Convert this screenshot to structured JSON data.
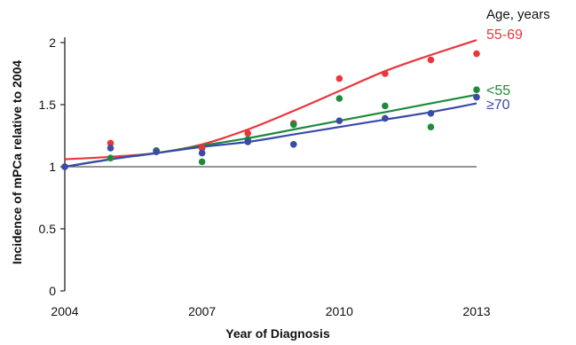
{
  "chart_data": {
    "type": "scatter",
    "title": "",
    "xlabel": "Year of Diagnosis",
    "ylabel": "Incidence of mPCa relative to 2004",
    "xlim": [
      2004,
      2013
    ],
    "ylim": [
      0,
      2
    ],
    "x_ticks": [
      2004,
      2007,
      2010,
      2013
    ],
    "x_tick_labels": [
      "2004",
      "2007",
      "2010",
      "2013"
    ],
    "y_ticks": [
      0,
      0.5,
      1,
      1.5,
      2
    ],
    "y_tick_labels": [
      "0",
      "0.5",
      "1",
      "1.5",
      "2"
    ],
    "reference_line": 1,
    "grid": false,
    "legend_title": "Age, years",
    "legend_placement": "right",
    "x": [
      2004,
      2005,
      2006,
      2007,
      2008,
      2009,
      2010,
      2011,
      2012,
      2013
    ],
    "series": [
      {
        "name": "55-69",
        "color": "#e8363c",
        "values": [
          1.0,
          1.19,
          1.13,
          1.15,
          1.27,
          1.35,
          1.71,
          1.75,
          1.86,
          1.91
        ],
        "fit": [
          1.06,
          1.08,
          1.11,
          1.18,
          1.3,
          1.45,
          1.61,
          1.77,
          1.9,
          2.02
        ]
      },
      {
        "name": "<55",
        "color": "#1e8a3c",
        "values": [
          1.0,
          1.07,
          1.13,
          1.04,
          1.22,
          1.34,
          1.55,
          1.49,
          1.32,
          1.62
        ],
        "fit": [
          1.0,
          1.06,
          1.11,
          1.17,
          1.23,
          1.3,
          1.37,
          1.44,
          1.51,
          1.58
        ]
      },
      {
        "name": "≥70",
        "color": "#3a4aa8",
        "values": [
          1.0,
          1.15,
          1.12,
          1.11,
          1.2,
          1.18,
          1.37,
          1.39,
          1.43,
          1.56
        ],
        "fit": [
          1.0,
          1.06,
          1.11,
          1.16,
          1.2,
          1.26,
          1.32,
          1.38,
          1.44,
          1.51
        ]
      }
    ]
  }
}
